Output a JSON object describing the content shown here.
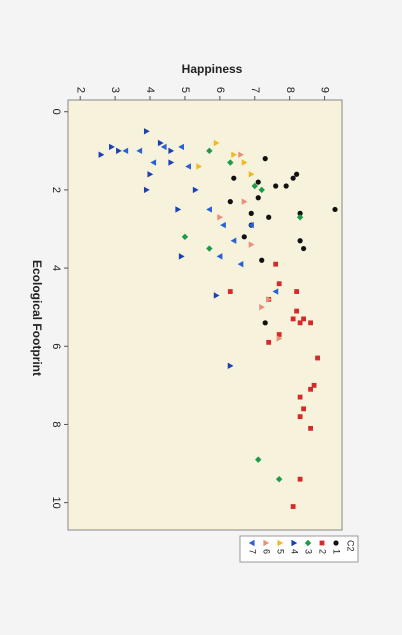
{
  "chart_data": {
    "type": "scatter",
    "x_label": "Ecological Footprint",
    "y_label": "Happiness",
    "xlim": [
      -0.3,
      10.7
    ],
    "ylim": [
      1.65,
      9.5
    ],
    "xticks": [
      0,
      2,
      4,
      6,
      8,
      10
    ],
    "yticks": [
      2,
      3,
      4,
      5,
      6,
      7,
      8,
      9
    ],
    "legend_title": "C2",
    "legend_position": "right",
    "background": "#f6f2dc",
    "series": [
      {
        "name": "1",
        "color": "#111111",
        "marker": "circle",
        "x": [
          1.2,
          1.6,
          1.7,
          1.9,
          1.9,
          1.7,
          1.8,
          2.5,
          2.2,
          2.6,
          2.6,
          2.7,
          2.9,
          3.2,
          3.3,
          3.5,
          3.8,
          5.4,
          2.3
        ],
        "y": [
          7.3,
          8.2,
          8.1,
          7.6,
          7.9,
          6.4,
          7.1,
          9.3,
          7.1,
          6.9,
          8.3,
          7.4,
          6.9,
          6.7,
          8.3,
          8.4,
          7.2,
          7.3,
          6.3
        ]
      },
      {
        "name": "2",
        "color": "#d42a2a",
        "marker": "square",
        "x": [
          3.9,
          4.4,
          4.6,
          4.6,
          4.8,
          5.1,
          5.3,
          5.4,
          5.3,
          5.4,
          5.9,
          5.7,
          6.3,
          7.0,
          7.1,
          7.3,
          7.6,
          7.8,
          8.1,
          9.4,
          10.1
        ],
        "y": [
          7.6,
          7.7,
          8.2,
          6.3,
          7.4,
          8.2,
          8.4,
          8.6,
          8.1,
          8.3,
          7.4,
          7.7,
          8.8,
          8.7,
          8.6,
          8.3,
          8.4,
          8.3,
          8.6,
          8.3,
          8.1
        ]
      },
      {
        "name": "3",
        "color": "#1f9a4a",
        "marker": "diamond",
        "x": [
          1.0,
          1.3,
          1.9,
          2.0,
          2.7,
          3.2,
          3.5,
          8.9,
          9.4
        ],
        "y": [
          5.7,
          6.3,
          7.0,
          7.2,
          8.3,
          5.0,
          5.7,
          7.1,
          7.7
        ]
      },
      {
        "name": "4",
        "color": "#1b3fb5",
        "marker": "triangle-up",
        "x": [
          0.9,
          1.1,
          1.0,
          0.5,
          0.8,
          1.0,
          1.6,
          2.0,
          2.5,
          3.7,
          4.7,
          6.5,
          2.0,
          1.3
        ],
        "y": [
          2.9,
          2.6,
          3.1,
          3.9,
          4.3,
          4.6,
          4.0,
          3.9,
          4.8,
          4.9,
          5.9,
          6.3,
          5.3,
          4.6
        ]
      },
      {
        "name": "5",
        "color": "#f2b824",
        "marker": "triangle-up",
        "x": [
          0.8,
          1.1,
          1.3,
          1.4,
          1.6
        ],
        "y": [
          5.9,
          6.4,
          6.7,
          5.4,
          6.9
        ]
      },
      {
        "name": "6",
        "color": "#e8907a",
        "marker": "triangle-up",
        "x": [
          1.1,
          2.3,
          2.7,
          3.4,
          4.8,
          5.8,
          5.0
        ],
        "y": [
          6.6,
          6.7,
          6.0,
          6.9,
          7.4,
          7.7,
          7.2
        ]
      },
      {
        "name": "7",
        "color": "#2a5fd6",
        "marker": "triangle-down",
        "x": [
          1.0,
          1.0,
          1.3,
          0.9,
          0.9,
          1.4,
          2.5,
          2.9,
          3.3,
          3.7,
          3.9,
          2.9,
          4.6
        ],
        "y": [
          3.3,
          3.7,
          4.1,
          4.4,
          4.9,
          5.1,
          5.7,
          6.1,
          6.4,
          6.0,
          6.6,
          6.9,
          7.6
        ]
      }
    ]
  }
}
